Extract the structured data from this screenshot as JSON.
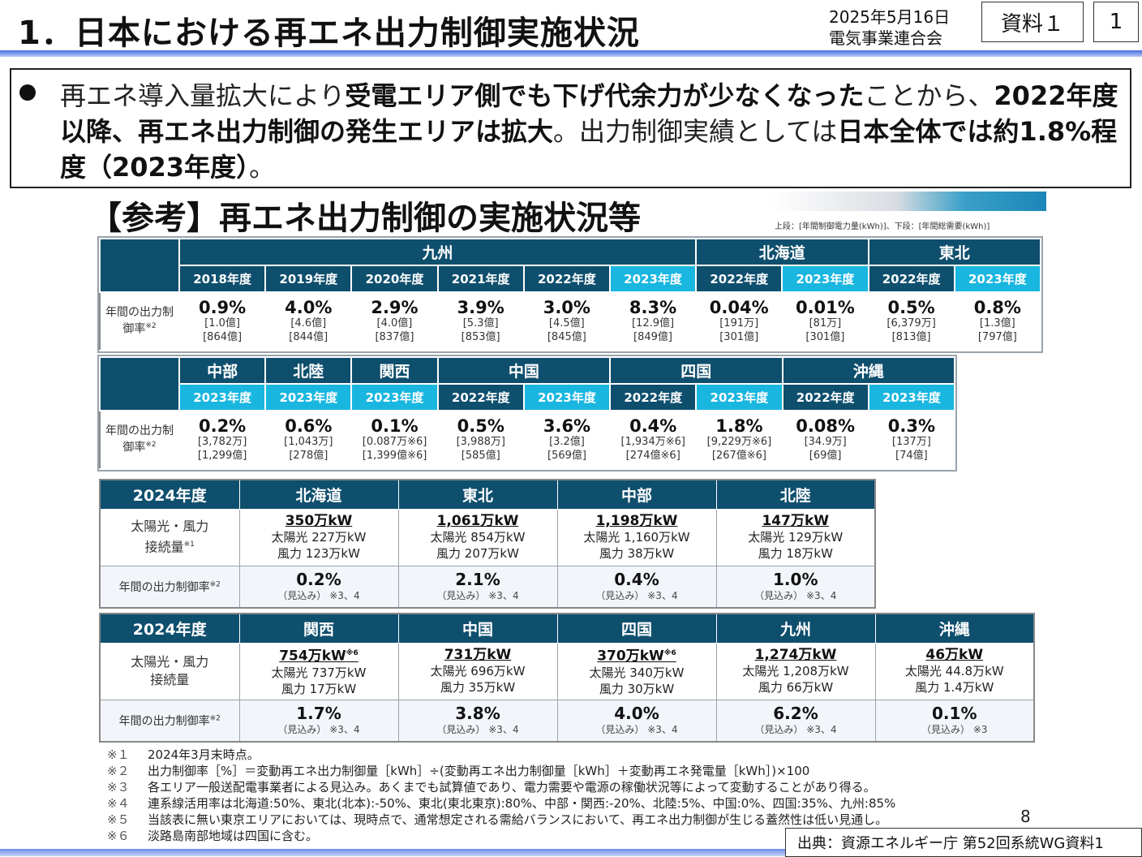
{
  "header": {
    "title": "1．日本における再エネ出力制御実施状況",
    "date": "2025年5月16日",
    "org": "電気事業連合会",
    "doc_label": "資料１",
    "page": "1"
  },
  "summary": {
    "p1": "再エネ導入量拡大により",
    "b1": "受電エリア側でも下げ代余力が少なくなった",
    "p2": "ことから、",
    "b2": "2022年度以降、再エネ出力制御の発生エリアは拡大",
    "p3": "。出力制御実績としては",
    "b3": "日本全体では約1.8%程度（2023年度）",
    "p4": "。"
  },
  "subtitle": "【参考】再エネ出力制御の実施状況等",
  "legend": "上段：[年間制御電力量(kWh)]、下段：[年間総需要(kWh)]",
  "row_label": "年間の出力制御率",
  "row_label_note": "※2",
  "table1": {
    "groups": [
      {
        "name": "九州",
        "span": 6
      },
      {
        "name": "北海道",
        "span": 2
      },
      {
        "name": "東北",
        "span": 2
      }
    ],
    "cells": [
      {
        "year": "2018年度",
        "pct": "0.9%",
        "a": "[1.0億]",
        "b": "[864億]",
        "hl": false
      },
      {
        "year": "2019年度",
        "pct": "4.0%",
        "a": "[4.6億]",
        "b": "[844億]",
        "hl": false
      },
      {
        "year": "2020年度",
        "pct": "2.9%",
        "a": "[4.0億]",
        "b": "[837億]",
        "hl": false
      },
      {
        "year": "2021年度",
        "pct": "3.9%",
        "a": "[5.3億]",
        "b": "[853億]",
        "hl": false
      },
      {
        "year": "2022年度",
        "pct": "3.0%",
        "a": "[4.5億]",
        "b": "[845億]",
        "hl": false
      },
      {
        "year": "2023年度",
        "pct": "8.3%",
        "a": "[12.9億]",
        "b": "[849億]",
        "hl": true
      },
      {
        "year": "2022年度",
        "pct": "0.04%",
        "a": "[191万]",
        "b": "[301億]",
        "hl": false
      },
      {
        "year": "2023年度",
        "pct": "0.01%",
        "a": "[81万]",
        "b": "[301億]",
        "hl": true
      },
      {
        "year": "2022年度",
        "pct": "0.5%",
        "a": "[6,379万]",
        "b": "[813億]",
        "hl": false
      },
      {
        "year": "2023年度",
        "pct": "0.8%",
        "a": "[1.3億]",
        "b": "[797億]",
        "hl": true
      }
    ]
  },
  "table2": {
    "groups": [
      {
        "name": "中部",
        "span": 1
      },
      {
        "name": "北陸",
        "span": 1
      },
      {
        "name": "関西",
        "span": 1
      },
      {
        "name": "中国",
        "span": 2
      },
      {
        "name": "四国",
        "span": 2
      },
      {
        "name": "沖縄",
        "span": 2
      }
    ],
    "cells": [
      {
        "year": "2023年度",
        "pct": "0.2%",
        "a": "[3,782万]",
        "b": "[1,299億]",
        "hl": true
      },
      {
        "year": "2023年度",
        "pct": "0.6%",
        "a": "[1,043万]",
        "b": "[278億]",
        "hl": true
      },
      {
        "year": "2023年度",
        "pct": "0.1%",
        "a": "[0.087万※6]",
        "b": "[1,399億※6]",
        "hl": true
      },
      {
        "year": "2022年度",
        "pct": "0.5%",
        "a": "[3,988万]",
        "b": "[585億]",
        "hl": false
      },
      {
        "year": "2023年度",
        "pct": "3.6%",
        "a": "[3.2億]",
        "b": "[569億]",
        "hl": true
      },
      {
        "year": "2022年度",
        "pct": "0.4%",
        "a": "[1,934万※6]",
        "b": "[274億※6]",
        "hl": false
      },
      {
        "year": "2023年度",
        "pct": "1.8%",
        "a": "[9,229万※6]",
        "b": "[267億※6]",
        "hl": true
      },
      {
        "year": "2022年度",
        "pct": "0.08%",
        "a": "[34.9万]",
        "b": "[69億]",
        "hl": false
      },
      {
        "year": "2023年度",
        "pct": "0.3%",
        "a": "[137万]",
        "b": "[74億]",
        "hl": true
      }
    ]
  },
  "table3": {
    "year": "2024年度",
    "cap_label_1": "太陽光・風力",
    "cap_label_2": "接続量",
    "cap_note": "※1",
    "rate_label": "年間の出力制御率",
    "rate_note": "※2",
    "cols": [
      {
        "area": "北海道",
        "cap": "350万kW",
        "solar": "太陽光 227万kW",
        "wind": "風力 123万kW",
        "rate": "0.2%",
        "est": "（見込み）",
        "est_note": "※3、4"
      },
      {
        "area": "東北",
        "cap": "1,061万kW",
        "solar": "太陽光 854万kW",
        "wind": "風力 207万kW",
        "rate": "2.1%",
        "est": "（見込み）",
        "est_note": "※3、4"
      },
      {
        "area": "中部",
        "cap": "1,198万kW",
        "solar": "太陽光 1,160万kW",
        "wind": "風力 38万kW",
        "rate": "0.4%",
        "est": "（見込み）",
        "est_note": "※3、4"
      },
      {
        "area": "北陸",
        "cap": "147万kW",
        "solar": "太陽光 129万kW",
        "wind": "風力 18万kW",
        "rate": "1.0%",
        "est": "（見込み）",
        "est_note": "※3、4"
      }
    ]
  },
  "table4": {
    "year": "2024年度",
    "cap_label_1": "太陽光・風力",
    "cap_label_2": "接続量",
    "rate_label": "年間の出力制御率",
    "rate_note": "※2",
    "cols": [
      {
        "area": "関西",
        "cap": "754万kW",
        "cap_note": "※6",
        "solar": "太陽光 737万kW",
        "wind": "風力 17万kW",
        "rate": "1.7%",
        "est": "（見込み）",
        "est_note": "※3、4"
      },
      {
        "area": "中国",
        "cap": "731万kW",
        "cap_note": "",
        "solar": "太陽光 696万kW",
        "wind": "風力 35万kW",
        "rate": "3.8%",
        "est": "（見込み）",
        "est_note": "※3、4"
      },
      {
        "area": "四国",
        "cap": "370万kW",
        "cap_note": "※6",
        "solar": "太陽光 340万kW",
        "wind": "風力 30万kW",
        "rate": "4.0%",
        "est": "（見込み）",
        "est_note": "※3、4"
      },
      {
        "area": "九州",
        "cap": "1,274万kW",
        "cap_note": "",
        "solar": "太陽光 1,208万kW",
        "wind": "風力 66万kW",
        "rate": "6.2%",
        "est": "（見込み）",
        "est_note": "※3、4"
      },
      {
        "area": "沖縄",
        "cap": "46万kW",
        "cap_note": "",
        "solar": "太陽光 44.8万kW",
        "wind": "風力 1.4万kW",
        "rate": "0.1%",
        "est": "（見込み）",
        "est_note": "※3"
      }
    ]
  },
  "notes": [
    {
      "k": "※１",
      "t": "2024年3月末時点。"
    },
    {
      "k": "※２",
      "t": "出力制御率［%］＝変動再エネ出力制御量［kWh］÷(変動再エネ出力制御量［kWh］＋変動再エネ発電量［kWh］)×100"
    },
    {
      "k": "※３",
      "t": "各エリア一般送配電事業者による見込み。あくまでも試算値であり、電力需要や電源の稼働状況等によって変動することがあり得る。"
    },
    {
      "k": "※４",
      "t": "連系線活用率は北海道:50%、東北(北本):-50%、東北(東北東京):80%、中部・関西:-20%、北陸:5%、中国:0%、四国:35%、九州:85%"
    },
    {
      "k": "※５",
      "t": "当該表に無い東京エリアにおいては、現時点で、通常想定される需給バランスにおいて、再エネ出力制御が生じる蓋然性は低い見通し。"
    },
    {
      "k": "※６",
      "t": "淡路島南部地域は四国に含む。"
    }
  ],
  "slide_number": "8",
  "source": "出典：資源エネルギー庁 第52回系統WG資料1"
}
